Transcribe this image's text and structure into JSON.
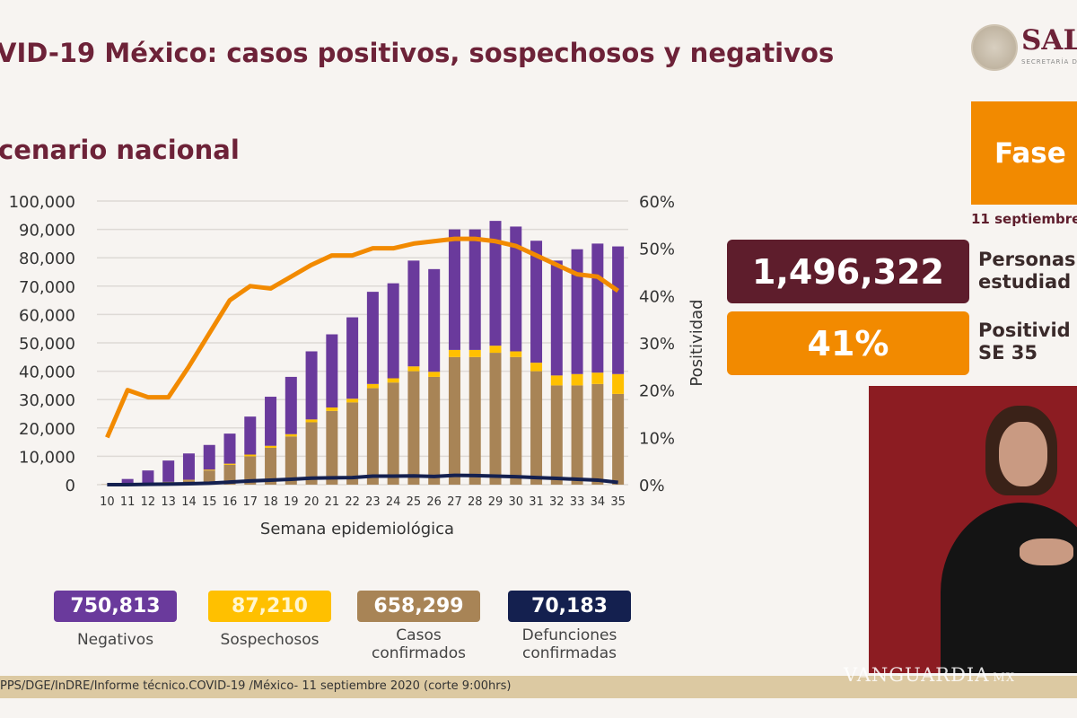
{
  "title": "VID-19 México: casos positivos, sospechosos y negativos",
  "subtitle": "cenario nacional",
  "logo": {
    "text": "SAL",
    "subtext": "SECRETARÍA DE"
  },
  "phase": {
    "label": "Fase",
    "date": "11 septiembre",
    "color": "#f28a00"
  },
  "studied": {
    "value": "1,496,322",
    "label_line1": "Personas",
    "label_line2": "estudiad",
    "color": "#5e1d2c"
  },
  "positivity": {
    "value": "41%",
    "label_line1": "Positivid",
    "label_line2": "SE 35",
    "color": "#f28a00"
  },
  "totals": [
    {
      "value": "750,813",
      "label": "Negativos",
      "color": "#6a3a9c"
    },
    {
      "value": "87,210",
      "label": "Sospechosos",
      "color": "#ffc000"
    },
    {
      "value": "658,299",
      "label": "Casos confirmados",
      "color": "#a88456"
    },
    {
      "value": "70,183",
      "label": "Defunciones confirmadas",
      "color": "#14204f"
    }
  ],
  "footer": "PPS/DGE/InDRE/Informe técnico.COVID-19 /México- 11 septiembre 2020 (corte 9:00hrs)",
  "watermark": "VANGUARDIA",
  "watermark_suffix": "MX",
  "chart_data": {
    "type": "bar",
    "stacked": true,
    "xlabel": "Semana epidemiológica",
    "ylabel": "",
    "y2label": "Positividad",
    "ylim": [
      0,
      100000
    ],
    "y2lim": [
      0,
      60
    ],
    "yticks": [
      "0",
      "10,000",
      "20,000",
      "30,000",
      "40,000",
      "50,000",
      "60,000",
      "70,000",
      "80,000",
      "90,000",
      "100,000"
    ],
    "y2ticks": [
      "0%",
      "10%",
      "20%",
      "30%",
      "40%",
      "50%",
      "60%"
    ],
    "grid": true,
    "categories": [
      "10",
      "11",
      "12",
      "13",
      "14",
      "15",
      "16",
      "17",
      "18",
      "19",
      "20",
      "21",
      "22",
      "23",
      "24",
      "25",
      "26",
      "27",
      "28",
      "29",
      "30",
      "31",
      "32",
      "33",
      "34",
      "35"
    ],
    "series": [
      {
        "key": "confirmados",
        "type": "bar",
        "color": "#a88456",
        "values": [
          100,
          200,
          500,
          1000,
          1500,
          5000,
          7000,
          10000,
          13000,
          17000,
          22000,
          26000,
          29000,
          34000,
          36000,
          40000,
          38000,
          45000,
          45000,
          46500,
          45000,
          40000,
          35000,
          35000,
          35500,
          32000
        ]
      },
      {
        "key": "sospechosos",
        "type": "bar",
        "color": "#ffc000",
        "values": [
          0,
          0,
          0,
          0,
          200,
          300,
          400,
          600,
          700,
          800,
          1000,
          1200,
          1300,
          1500,
          1500,
          1700,
          1800,
          2500,
          2500,
          2500,
          2000,
          3000,
          3500,
          4000,
          4000,
          7000
        ]
      },
      {
        "key": "negativos",
        "type": "bar",
        "color": "#6a3a9c",
        "values": [
          0,
          1800,
          4500,
          7500,
          9300,
          8700,
          10600,
          13400,
          17300,
          20200,
          24000,
          25800,
          28700,
          32500,
          33500,
          37300,
          36200,
          42500,
          42500,
          44000,
          44000,
          43000,
          40500,
          44000,
          45500,
          45000
        ]
      },
      {
        "key": "defunciones",
        "type": "line",
        "color": "#14204f",
        "values": [
          0,
          0,
          100,
          200,
          300,
          500,
          900,
          1300,
          1600,
          1900,
          2300,
          2400,
          2500,
          3000,
          3000,
          3100,
          2900,
          3300,
          3200,
          3000,
          2800,
          2500,
          2200,
          1900,
          1600,
          800
        ]
      },
      {
        "key": "positividad",
        "type": "line",
        "axis": "right",
        "color": "#f28a00",
        "values": [
          10,
          20,
          18.5,
          18.5,
          25,
          32,
          39,
          42,
          41.5,
          44,
          46.5,
          48.5,
          48.5,
          50,
          50,
          51,
          51.5,
          52,
          52,
          51.5,
          50.5,
          48.5,
          46.5,
          44.5,
          44,
          41
        ]
      }
    ]
  }
}
